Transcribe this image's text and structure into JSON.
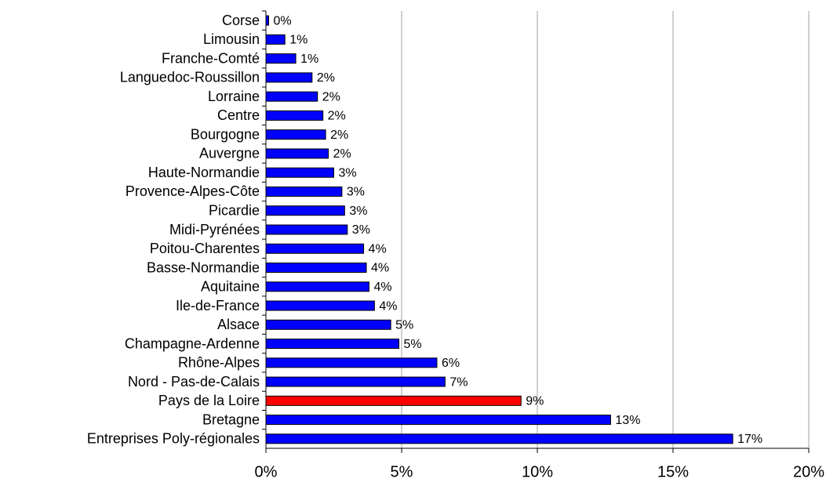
{
  "chart_data": {
    "type": "bar",
    "orientation": "horizontal",
    "categories": [
      "Corse",
      "Limousin",
      "Franche-Comté",
      "Languedoc-Roussillon",
      "Lorraine",
      "Centre",
      "Bourgogne",
      "Auvergne",
      "Haute-Normandie",
      "Provence-Alpes-Côte",
      "Picardie",
      "Midi-Pyrénées",
      "Poitou-Charentes",
      "Basse-Normandie",
      "Aquitaine",
      "Ile-de-France",
      "Alsace",
      "Champagne-Ardenne",
      "Rhône-Alpes",
      "Nord - Pas-de-Calais",
      "Pays de la Loire",
      "Bretagne",
      "Entreprises Poly-régionales"
    ],
    "values": [
      0.1,
      0.7,
      1.1,
      1.7,
      1.9,
      2.1,
      2.2,
      2.3,
      2.5,
      2.8,
      2.9,
      3.0,
      3.6,
      3.7,
      3.8,
      4.0,
      4.6,
      4.9,
      6.3,
      6.6,
      9.4,
      12.7,
      17.2
    ],
    "value_labels": [
      "0%",
      "1%",
      "1%",
      "2%",
      "2%",
      "2%",
      "2%",
      "2%",
      "3%",
      "3%",
      "3%",
      "3%",
      "4%",
      "4%",
      "4%",
      "4%",
      "5%",
      "5%",
      "6%",
      "7%",
      "9%",
      "13%",
      "17%"
    ],
    "colors": [
      "#0000ff",
      "#0000ff",
      "#0000ff",
      "#0000ff",
      "#0000ff",
      "#0000ff",
      "#0000ff",
      "#0000ff",
      "#0000ff",
      "#0000ff",
      "#0000ff",
      "#0000ff",
      "#0000ff",
      "#0000ff",
      "#0000ff",
      "#0000ff",
      "#0000ff",
      "#0000ff",
      "#0000ff",
      "#0000ff",
      "#ff0000",
      "#0000ff",
      "#0000ff"
    ],
    "xlim": [
      0,
      20
    ],
    "xticks": [
      {
        "value": 0,
        "label": "0%"
      },
      {
        "value": 5,
        "label": "5%"
      },
      {
        "value": 10,
        "label": "10%"
      },
      {
        "value": 15,
        "label": "15%"
      },
      {
        "value": 20,
        "label": "20%"
      }
    ],
    "grid": true
  }
}
